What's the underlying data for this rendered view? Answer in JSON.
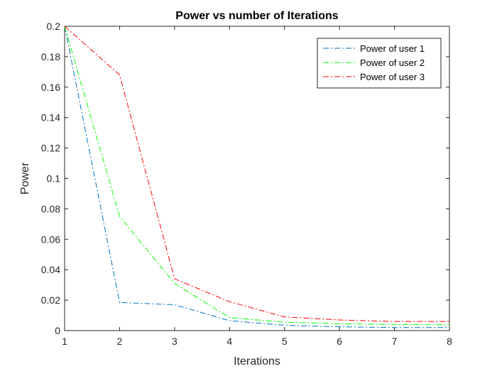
{
  "chart_data": {
    "type": "line",
    "title": "Power vs number of Iterations",
    "xlabel": "Iterations",
    "ylabel": "Power",
    "x": [
      1,
      2,
      3,
      4,
      5,
      6,
      7,
      8
    ],
    "xlim": [
      1,
      8
    ],
    "ylim": [
      0,
      0.2
    ],
    "xticks": [
      1,
      2,
      3,
      4,
      5,
      6,
      7,
      8
    ],
    "xtick_labels": [
      "1",
      "2",
      "3",
      "4",
      "5",
      "6",
      "7",
      "8"
    ],
    "yticks": [
      0,
      0.02,
      0.04,
      0.06,
      0.08,
      0.1,
      0.12,
      0.14,
      0.16,
      0.18,
      0.2
    ],
    "ytick_labels": [
      "0",
      "0.02",
      "0.04",
      "0.06",
      "0.08",
      "0.1",
      "0.12",
      "0.14",
      "0.16",
      "0.18",
      "0.2"
    ],
    "grid": false,
    "legend_position": "top-right",
    "line_style": "dash-dot",
    "series": [
      {
        "name": "Power of user 1",
        "color": "#0072BD",
        "values": [
          0.2,
          0.0185,
          0.017,
          0.0065,
          0.0035,
          0.0025,
          0.002,
          0.002
        ]
      },
      {
        "name": "Power of user 2",
        "color": "#00FF00",
        "values": [
          0.2,
          0.075,
          0.031,
          0.0085,
          0.0055,
          0.0045,
          0.004,
          0.0038
        ]
      },
      {
        "name": "Power of user 3",
        "color": "#FF0000",
        "values": [
          0.2,
          0.168,
          0.034,
          0.019,
          0.009,
          0.007,
          0.006,
          0.006
        ]
      }
    ]
  }
}
